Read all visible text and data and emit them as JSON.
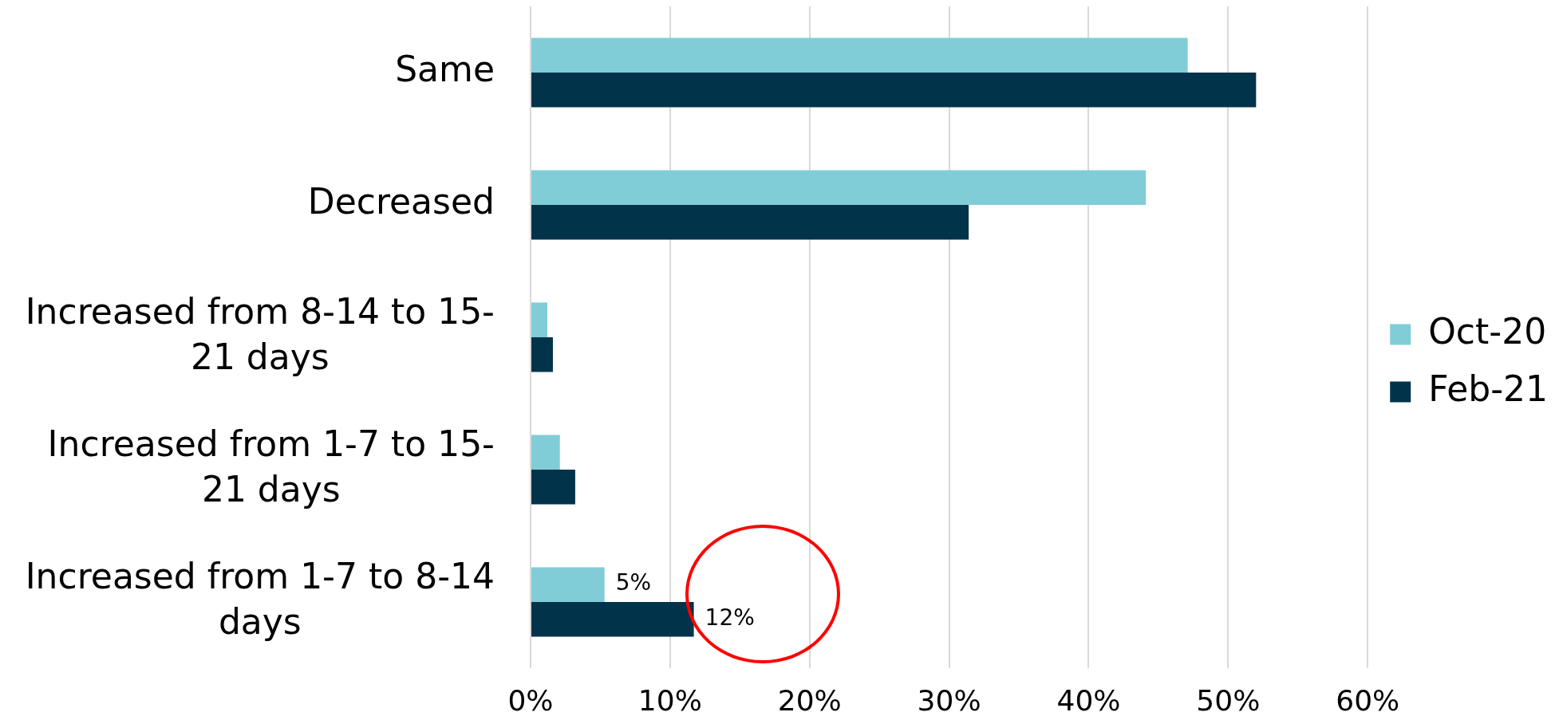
{
  "chart_data": {
    "type": "bar",
    "orientation": "horizontal",
    "categories": [
      "Same",
      "Decreased",
      "Increased from 8-14 to 15-21 days",
      "Increased from 1-7 to 15-21 days",
      "Increased from 1-7 to 8-14 days"
    ],
    "series": [
      {
        "name": "Oct-20",
        "color": "#80cdd7",
        "values": [
          47.1,
          44.1,
          1.2,
          2.1,
          5.3
        ],
        "value_labels": [
          null,
          null,
          null,
          null,
          "5%"
        ]
      },
      {
        "name": "Feb-21",
        "color": "#01334a",
        "values": [
          52.0,
          31.4,
          1.6,
          3.2,
          11.7
        ],
        "value_labels": [
          null,
          null,
          null,
          null,
          "12%"
        ]
      }
    ],
    "xlim": [
      0,
      60
    ],
    "xticks": [
      {
        "value": 0,
        "label": "0%"
      },
      {
        "value": 10,
        "label": "10%"
      },
      {
        "value": 20,
        "label": "20%"
      },
      {
        "value": 30,
        "label": "30%"
      },
      {
        "value": 40,
        "label": "40%"
      },
      {
        "value": 50,
        "label": "50%"
      },
      {
        "value": 60,
        "label": "60%"
      }
    ],
    "grid": "x",
    "legend": "right"
  }
}
